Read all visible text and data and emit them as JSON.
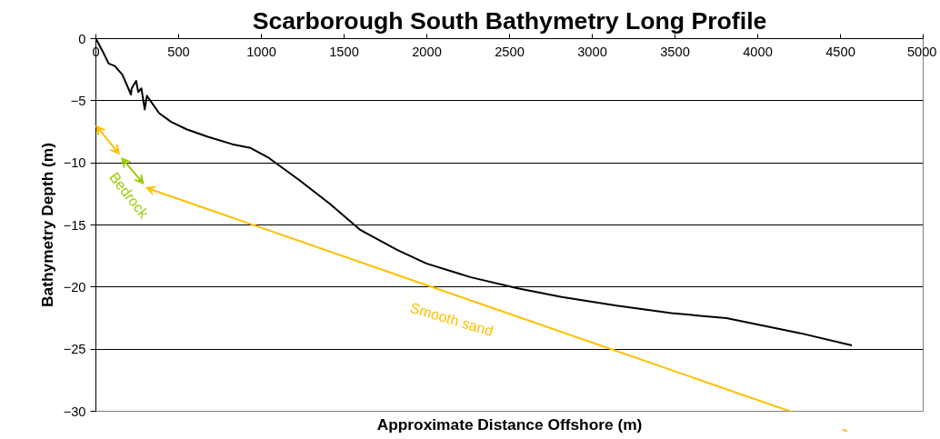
{
  "chart_data": {
    "type": "line",
    "title": "Scarborough South Bathymetry Long Profile",
    "xlabel": "Approximate Distance Offshore (m)",
    "ylabel": "Bathymetry Depth (m)",
    "xlim": [
      0,
      5000
    ],
    "xticks": [
      0,
      500,
      1000,
      1500,
      2000,
      2500,
      3000,
      3500,
      4000,
      4500,
      5000
    ],
    "ylim": [
      -30,
      0
    ],
    "yticks": [
      -30,
      -25,
      -20,
      -15,
      -10,
      -5,
      0
    ],
    "grid": "y",
    "marker": "none",
    "line_style": "solid",
    "series": [
      {
        "color": "#000000",
        "x": [
          0,
          40,
          77,
          114,
          160,
          212,
          216,
          243,
          256,
          275,
          295,
          308,
          382,
          455,
          548,
          677,
          824,
          935,
          1045,
          1230,
          1414,
          1598,
          1820,
          1997,
          2262,
          2550,
          2815,
          3147,
          3479,
          3811,
          4032,
          4253,
          4569
        ],
        "values": [
          0,
          -1.0,
          -2.0,
          -2.2,
          -2.9,
          -4.5,
          -4.0,
          -3.4,
          -4.3,
          -4.0,
          -5.7,
          -4.6,
          -6.0,
          -6.7,
          -7.3,
          -7.9,
          -8.5,
          -8.8,
          -9.6,
          -11.4,
          -13.3,
          -15.4,
          -17.0,
          -18.1,
          -19.2,
          -20.1,
          -20.8,
          -21.5,
          -22.1,
          -22.5,
          -23.1,
          -23.7,
          -24.7
        ]
      }
    ],
    "annotations": [
      "Bedrock",
      "Smooth sand"
    ]
  }
}
